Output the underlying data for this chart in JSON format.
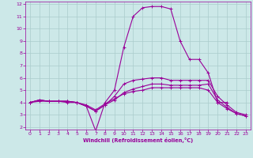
{
  "xlabel": "Windchill (Refroidissement éolien,°C)",
  "xlim": [
    -0.5,
    23.5
  ],
  "ylim": [
    1.8,
    12.2
  ],
  "xticks": [
    0,
    1,
    2,
    3,
    4,
    5,
    6,
    7,
    8,
    9,
    10,
    11,
    12,
    13,
    14,
    15,
    16,
    17,
    18,
    19,
    20,
    21,
    22,
    23
  ],
  "yticks": [
    2,
    3,
    4,
    5,
    6,
    7,
    8,
    9,
    10,
    11,
    12
  ],
  "bg_color": "#cce8e8",
  "line_color": "#990099",
  "grid_color": "#aacccc",
  "lines": [
    {
      "x": [
        0,
        1,
        2,
        3,
        4,
        5,
        6,
        7,
        8,
        9,
        10,
        11,
        12,
        13,
        14,
        15,
        16,
        17,
        18,
        19,
        20,
        21
      ],
      "y": [
        4.0,
        4.2,
        4.1,
        4.1,
        4.1,
        4.0,
        3.7,
        1.7,
        4.0,
        5.0,
        8.5,
        11.0,
        11.7,
        11.8,
        11.8,
        11.6,
        9.0,
        7.5,
        7.5,
        6.4,
        4.0,
        4.0
      ]
    },
    {
      "x": [
        0,
        1,
        2,
        3,
        4,
        5,
        6,
        7,
        8,
        9,
        10,
        11,
        12,
        13,
        14,
        15,
        16,
        17,
        18,
        19,
        20,
        21,
        22,
        23
      ],
      "y": [
        4.0,
        4.2,
        4.1,
        4.1,
        4.1,
        4.0,
        3.7,
        3.3,
        3.8,
        4.5,
        5.5,
        5.8,
        5.9,
        6.0,
        6.0,
        5.8,
        5.8,
        5.8,
        5.8,
        5.8,
        4.5,
        3.8,
        3.2,
        3.0
      ]
    },
    {
      "x": [
        0,
        1,
        2,
        3,
        4,
        5,
        6,
        7,
        8,
        9,
        10,
        11,
        12,
        13,
        14,
        15,
        16,
        17,
        18,
        19,
        20,
        21,
        22,
        23
      ],
      "y": [
        4.0,
        4.2,
        4.1,
        4.1,
        4.1,
        4.0,
        3.7,
        3.3,
        3.8,
        4.2,
        4.8,
        5.1,
        5.3,
        5.5,
        5.5,
        5.4,
        5.4,
        5.4,
        5.4,
        5.5,
        4.2,
        3.6,
        3.1,
        2.9
      ]
    },
    {
      "x": [
        0,
        1,
        2,
        3,
        4,
        5,
        6,
        7,
        8,
        9,
        10,
        11,
        12,
        13,
        14,
        15,
        16,
        17,
        18,
        19,
        20,
        21,
        22,
        23
      ],
      "y": [
        4.0,
        4.1,
        4.1,
        4.1,
        4.0,
        4.0,
        3.8,
        3.4,
        3.9,
        4.3,
        4.7,
        4.9,
        5.0,
        5.2,
        5.2,
        5.2,
        5.2,
        5.2,
        5.2,
        5.0,
        4.0,
        3.5,
        3.1,
        2.9
      ]
    }
  ]
}
